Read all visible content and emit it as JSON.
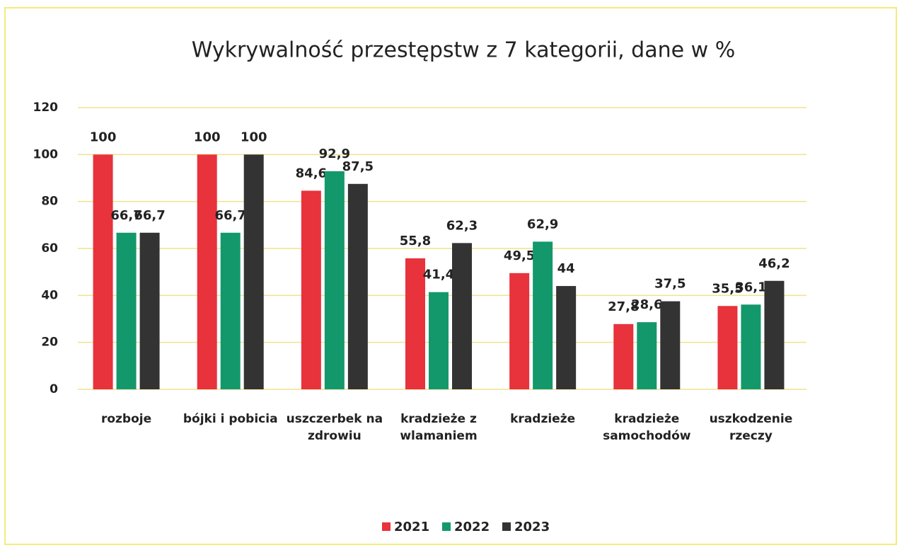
{
  "chart_data": {
    "type": "bar",
    "title": "Wykrywalność przestępstw z 7 kategorii, dane w %",
    "categories": [
      "rozboje",
      "bójki i pobicia",
      "uszczerbek na zdrowiu",
      "kradzieże z wlamaniem",
      "kradzieże",
      "kradzieże samochodów",
      "uszkodzenie rzeczy"
    ],
    "series": [
      {
        "name": "2021",
        "color": "#e8323c",
        "values": [
          100,
          100,
          84.6,
          55.8,
          49.5,
          27.8,
          35.5
        ],
        "value_labels": [
          "100",
          "100",
          "84,6",
          "55,8",
          "49,5",
          "27,8",
          "35,5"
        ]
      },
      {
        "name": "2022",
        "color": "#13986c",
        "values": [
          66.7,
          66.7,
          92.9,
          41.4,
          62.9,
          28.6,
          36.1
        ],
        "value_labels": [
          "66,7",
          "66,7",
          "92,9",
          "41,4",
          "62,9",
          "28,6",
          "36,1"
        ]
      },
      {
        "name": "2023",
        "color": "#333333",
        "values": [
          66.7,
          100,
          87.5,
          62.3,
          44,
          37.5,
          46.2
        ],
        "value_labels": [
          "66,7",
          "100",
          "87,5",
          "62,3",
          "44",
          "37,5",
          "46,2"
        ]
      }
    ],
    "ylim": [
      0,
      120
    ],
    "yticks": [
      0,
      20,
      40,
      60,
      80,
      100,
      120
    ],
    "grid": true,
    "legend": "bottom"
  }
}
